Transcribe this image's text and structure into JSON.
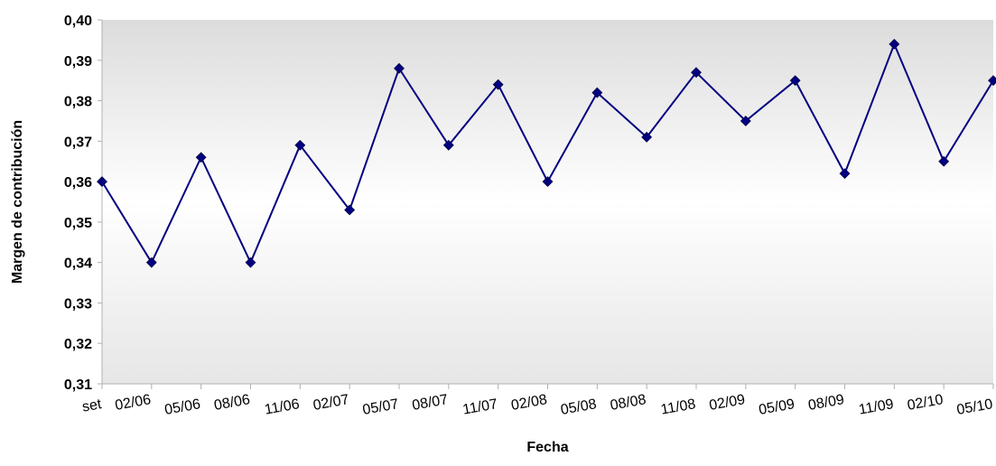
{
  "colors": {
    "series": "#000080",
    "plot_bg_top": "#dcdcdc",
    "plot_bg_mid": "#ffffff",
    "plot_bg_bottom": "#e6e6e6",
    "axis": "#b0b0b0"
  },
  "chart_data": {
    "type": "line",
    "xlabel": "Fecha",
    "ylabel": "Margen de contribución",
    "ylim": [
      0.31,
      0.4
    ],
    "y_ticks": [
      "0,31",
      "0,32",
      "0,33",
      "0,34",
      "0,35",
      "0,36",
      "0,37",
      "0,38",
      "0,39",
      "0,40"
    ],
    "grid": false,
    "legend": "none",
    "categories": [
      "set",
      "02/06",
      "05/06",
      "08/06",
      "11/06",
      "02/07",
      "05/07",
      "08/07",
      "11/07",
      "02/08",
      "05/08",
      "08/08",
      "11/08",
      "02/09",
      "05/09",
      "08/09",
      "11/09",
      "02/10",
      "05/10"
    ],
    "series": [
      {
        "values": [
          0.36,
          0.34,
          0.366,
          0.34,
          0.369,
          0.353,
          0.388,
          0.369,
          0.384,
          0.36,
          0.382,
          0.371,
          0.387,
          0.375,
          0.385,
          0.362,
          0.394,
          0.365,
          0.385
        ]
      }
    ]
  }
}
